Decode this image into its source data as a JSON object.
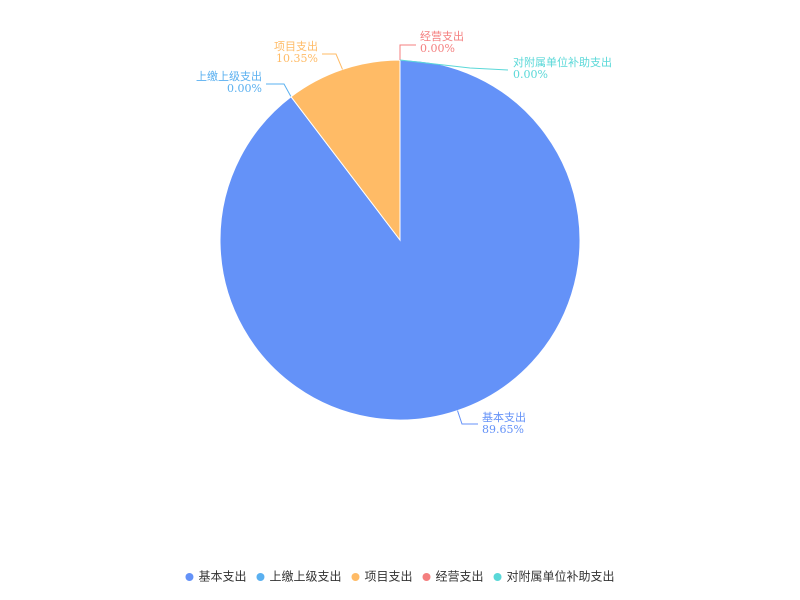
{
  "chart_data": {
    "type": "pie",
    "categories": [
      "基本支出",
      "上缴上级支出",
      "项目支出",
      "经营支出",
      "对附属单位补助支出"
    ],
    "values": [
      89.65,
      0.0,
      10.35,
      0.0,
      0.0
    ],
    "value_labels": [
      "89.65%",
      "0.00%",
      "10.35%",
      "0.00%",
      "0.00%"
    ],
    "colors": [
      "#6492f8",
      "#5ab0f0",
      "#ffbb66",
      "#f47f7f",
      "#5ad8d8"
    ],
    "legend": "bottom"
  }
}
